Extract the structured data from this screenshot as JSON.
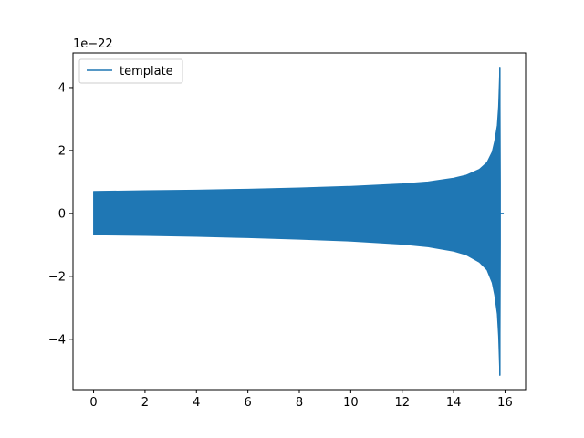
{
  "chart_data": {
    "type": "line",
    "title": "",
    "xlabel": "",
    "ylabel": "",
    "offset_text": "1e−22",
    "xlim": [
      -0.8,
      16.8
    ],
    "ylim": [
      -5.6,
      5.1
    ],
    "xticks": [
      0,
      2,
      4,
      6,
      8,
      10,
      12,
      14,
      16
    ],
    "xtick_labels": [
      "0",
      "2",
      "4",
      "6",
      "8",
      "10",
      "12",
      "14",
      "16"
    ],
    "yticks": [
      -4,
      -2,
      0,
      2,
      4
    ],
    "ytick_labels": [
      "−4",
      "−2",
      "0",
      "2",
      "4"
    ],
    "grid": false,
    "legend": {
      "position": "top-left",
      "entries": [
        "template"
      ]
    },
    "series": [
      {
        "name": "template",
        "color": "#1f77b4",
        "description_envelope": true,
        "envelope_x": [
          0.0,
          2.0,
          4.0,
          6.0,
          8.0,
          10.0,
          12.0,
          13.0,
          14.0,
          14.5,
          15.0,
          15.3,
          15.5,
          15.6,
          15.7,
          15.75,
          15.8,
          15.82
        ],
        "envelope_upper": [
          0.7,
          0.72,
          0.74,
          0.77,
          0.81,
          0.86,
          0.94,
          1.0,
          1.12,
          1.22,
          1.4,
          1.62,
          1.95,
          2.3,
          2.8,
          3.4,
          4.65,
          1.0
        ],
        "envelope_lower": [
          -0.68,
          -0.7,
          -0.73,
          -0.77,
          -0.82,
          -0.88,
          -0.98,
          -1.06,
          -1.2,
          -1.32,
          -1.55,
          -1.8,
          -2.2,
          -2.6,
          -3.2,
          -3.9,
          -5.15,
          -1.0
        ],
        "tail_x": [
          15.85,
          15.95
        ],
        "tail_y": [
          0.0,
          0.0
        ]
      }
    ]
  }
}
